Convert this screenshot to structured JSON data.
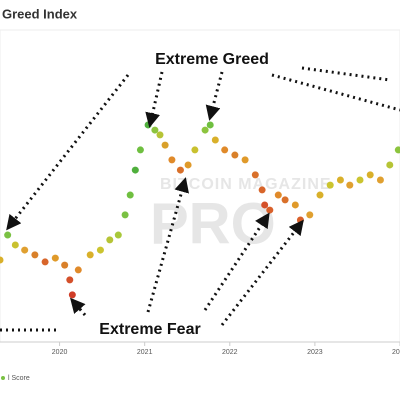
{
  "chart_data": {
    "type": "scatter",
    "title": "Greed Index",
    "annotations": [
      "Extreme Greed",
      "Extreme Fear"
    ],
    "watermark": [
      "BITCOIN MAGAZINE",
      "PRO"
    ],
    "x": [
      2019.3,
      2019.39,
      2019.48,
      2019.59,
      2019.71,
      2019.83,
      2019.95,
      2020.06,
      2020.12,
      2020.15,
      2020.22,
      2020.36,
      2020.48,
      2020.59,
      2020.69,
      2020.77,
      2020.83,
      2020.89,
      2020.95,
      2021.04,
      2021.12,
      2021.18,
      2021.24,
      2021.32,
      2021.42,
      2021.51,
      2021.59,
      2021.71,
      2021.77,
      2021.83,
      2021.94,
      2022.06,
      2022.18,
      2022.3,
      2022.38,
      2022.41,
      2022.47,
      2022.57,
      2022.65,
      2022.77,
      2022.83,
      2022.94,
      2023.06,
      2023.18,
      2023.3,
      2023.41,
      2023.53,
      2023.65,
      2023.77,
      2023.88,
      2023.98
    ],
    "series": [
      {
        "name": "l Score",
        "values": [
          25,
          32.8,
          29.7,
          28.1,
          26.6,
          24.4,
          25.6,
          23.4,
          18.8,
          14.1,
          21.9,
          26.6,
          28.1,
          31.3,
          32.8,
          39.1,
          45.3,
          53.1,
          59.4,
          67.2,
          65.6,
          64.1,
          60.9,
          56.3,
          53.1,
          54.7,
          59.4,
          65.6,
          67.2,
          62.5,
          59.4,
          57.8,
          56.3,
          51.6,
          46.9,
          42.2,
          40.6,
          45.3,
          43.8,
          42.2,
          37.5,
          39.1,
          45.3,
          48.4,
          50,
          48.4,
          50,
          51.6,
          50,
          54.7,
          59.4
        ],
        "colors": [
          "#d9b02a",
          "#7ac143",
          "#c9c12f",
          "#e0a030",
          "#d9802a",
          "#d8652a",
          "#e09a2a",
          "#d9802a",
          "#d4502a",
          "#cf3d28",
          "#e08a2a",
          "#d9b02a",
          "#cbc42f",
          "#b6c436",
          "#a8c83a",
          "#7ac143",
          "#6fbf40",
          "#4faf3c",
          "#6fbf40",
          "#4faf3c",
          "#8cc43e",
          "#b6c436",
          "#d9a02a",
          "#e08a2a",
          "#d9702a",
          "#e09a2a",
          "#c9c12f",
          "#8cc43e",
          "#6fbf40",
          "#d9b02a",
          "#e08a2a",
          "#d9802a",
          "#e09a2a",
          "#d9702a",
          "#d8652a",
          "#d4502a",
          "#d9602a",
          "#e08a2a",
          "#d9702a",
          "#e09a2a",
          "#d9602a",
          "#e0a030",
          "#d9b02a",
          "#cbc42f",
          "#d9b02a",
          "#e0a030",
          "#cbc42f",
          "#d9b02a",
          "#e0a030",
          "#b6c436",
          "#8cc43e"
        ]
      }
    ],
    "xlim": [
      2019.3,
      2024.0
    ],
    "ylim": [
      0,
      100
    ],
    "xticks": [
      2020,
      2021,
      2022,
      2023,
      {
        "value": 2024,
        "label": "20"
      }
    ]
  }
}
